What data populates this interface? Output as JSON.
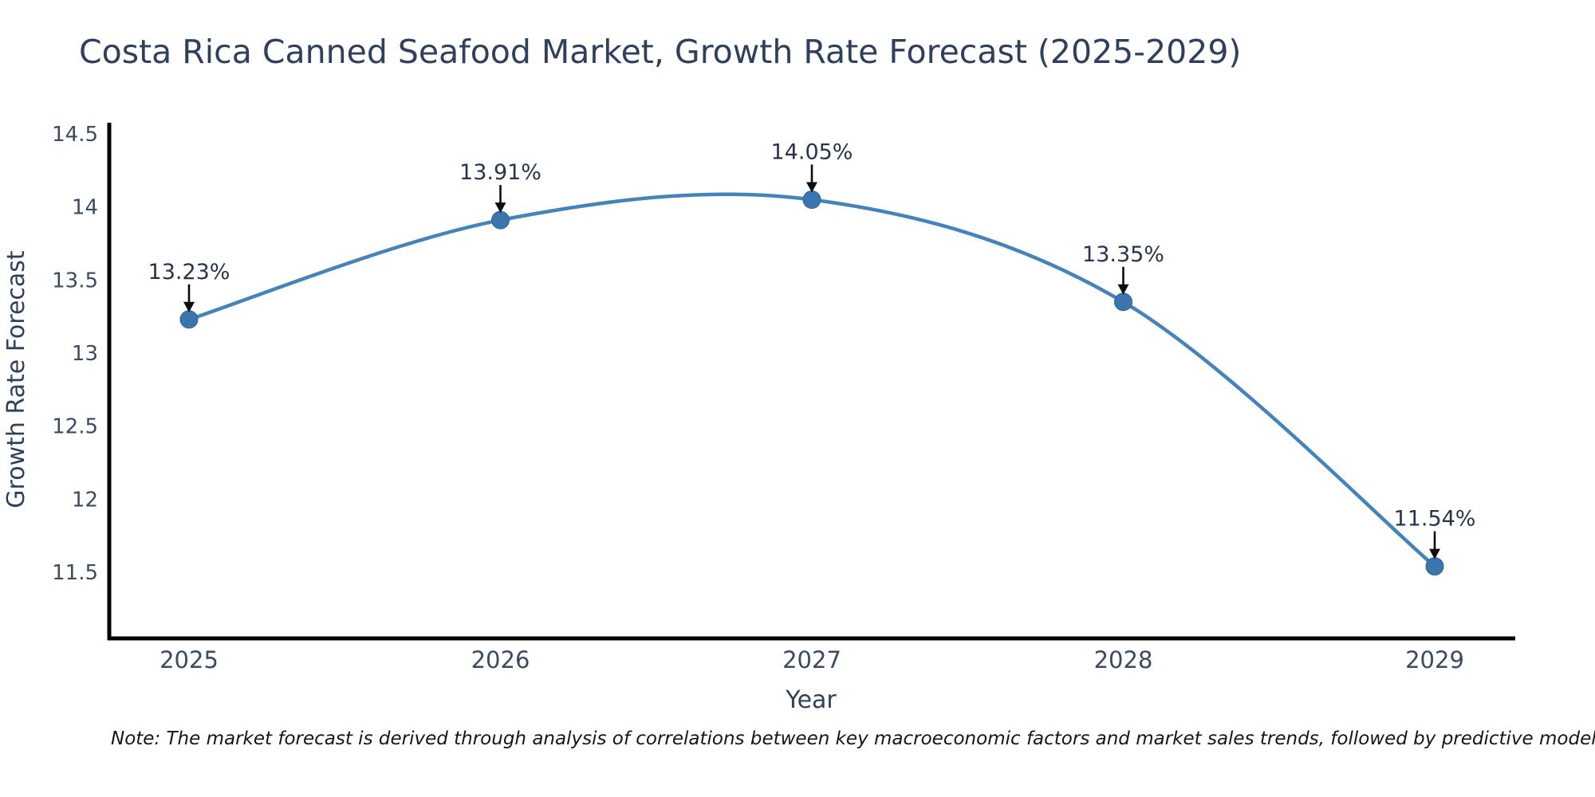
{
  "page": {
    "note": "Note: The market forecast is derived through analysis of correlations between key macroeconomic factors and market sales trends, followed by predictive modeling to project future sal"
  },
  "chart_data": {
    "type": "line",
    "title": "Costa Rica Canned Seafood Market, Growth Rate Forecast (2025-2029)",
    "xlabel": "Year",
    "ylabel": "Growth Rate Forecast",
    "categories": [
      "2025",
      "2026",
      "2027",
      "2028",
      "2029"
    ],
    "series": [
      {
        "name": "Growth Rate Forecast",
        "values": [
          13.23,
          13.91,
          14.05,
          13.35,
          11.54
        ]
      }
    ],
    "point_labels": [
      "13.23%",
      "13.91%",
      "14.05%",
      "13.35%",
      "11.54%"
    ],
    "y_ticks": [
      14.5,
      14,
      13.5,
      13,
      12.5,
      12,
      11.5
    ],
    "ylim": [
      11.05,
      14.58
    ],
    "grid": false,
    "legend_position": "none",
    "line_smooth": true,
    "colors": {
      "line": "#4484bb",
      "marker": "#3a76ad",
      "marker_edge": "#2f6499",
      "axis": "#000000",
      "annotation_arrow": "#0d0d0d",
      "title_text": "#2f3f5e",
      "tick_text": "#3b4a63"
    }
  }
}
